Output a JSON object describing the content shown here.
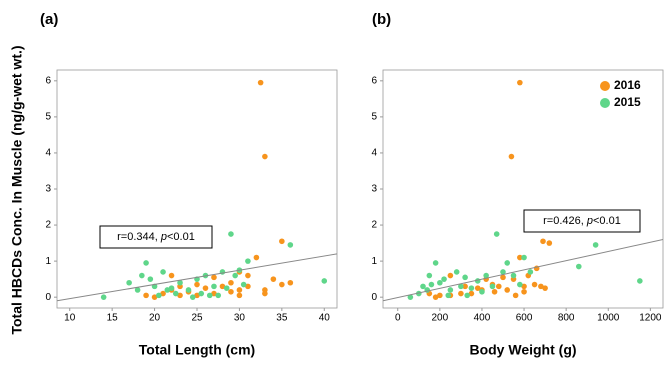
{
  "chart_data": [
    {
      "type": "scatter",
      "panel_label": "(a)",
      "x_label": "Total Length (cm)",
      "y_label": "Total HBCDs Conc. In Muscle (ng/g-wet wt.)",
      "xlim": [
        8.5,
        41.5
      ],
      "ylim": [
        -0.3,
        6.3
      ],
      "xticks": [
        10,
        15,
        20,
        25,
        30,
        35,
        40
      ],
      "yticks": [
        0,
        1,
        2,
        3,
        4,
        5,
        6
      ],
      "annotation": {
        "prefix": "r=0.344, ",
        "italic": "p",
        "suffix": "<0.01"
      },
      "fit_line": {
        "x": [
          8.5,
          41.5
        ],
        "y": [
          -0.1,
          1.2
        ],
        "color": "#888888"
      },
      "series": [
        {
          "name": "2016",
          "color": "#f7941d",
          "x": [
            32.5,
            33,
            35,
            32,
            22,
            30,
            34,
            36,
            31,
            33,
            29,
            27,
            25,
            23,
            21,
            20,
            24,
            26,
            28,
            30,
            31,
            33,
            35,
            22,
            19,
            27,
            29,
            25,
            30,
            23
          ],
          "values": [
            5.95,
            3.9,
            1.55,
            1.1,
            0.6,
            0.7,
            0.5,
            0.4,
            0.3,
            0.2,
            0.15,
            0.1,
            0.05,
            0.05,
            0.1,
            0.0,
            0.15,
            0.25,
            0.3,
            0.05,
            0.6,
            0.1,
            0.35,
            0.2,
            0.05,
            0.55,
            0.4,
            0.35,
            0.2,
            0.3
          ]
        },
        {
          "name": "2015",
          "color": "#5fd68a",
          "x": [
            14,
            17,
            18,
            19,
            19.5,
            20,
            21,
            22,
            22.5,
            23,
            24,
            25,
            25.5,
            26,
            27,
            27.5,
            28,
            28.5,
            29,
            29.5,
            30,
            30.5,
            31,
            26.5,
            24.5,
            20.5,
            36,
            40,
            18.5,
            21.5
          ],
          "values": [
            0.0,
            0.4,
            0.2,
            0.95,
            0.5,
            0.3,
            0.7,
            0.25,
            0.1,
            0.4,
            0.2,
            0.5,
            0.1,
            0.6,
            0.3,
            0.05,
            0.7,
            0.25,
            1.75,
            0.6,
            0.75,
            0.35,
            1.0,
            0.05,
            0.0,
            0.05,
            1.45,
            0.45,
            0.6,
            0.2
          ]
        }
      ]
    },
    {
      "type": "scatter",
      "panel_label": "(b)",
      "x_label": "Body Weight (g)",
      "xlim": [
        -70,
        1260
      ],
      "ylim": [
        -0.3,
        6.3
      ],
      "xticks": [
        0,
        200,
        400,
        600,
        800,
        1000,
        1200
      ],
      "yticks": [
        0,
        1,
        2,
        3,
        4,
        5,
        6
      ],
      "annotation": {
        "prefix": "r=0.426, ",
        "italic": "p",
        "suffix": "<0.01"
      },
      "fit_line": {
        "x": [
          -70,
          1260
        ],
        "y": [
          -0.1,
          1.6
        ],
        "color": "#888888"
      },
      "legend": "upper right",
      "series": [
        {
          "name": "2016",
          "color": "#f7941d",
          "x": [
            580,
            540,
            690,
            720,
            580,
            250,
            500,
            620,
            660,
            550,
            450,
            400,
            350,
            300,
            200,
            150,
            250,
            480,
            520,
            600,
            650,
            700,
            560,
            420,
            380,
            320,
            180,
            680,
            460,
            600
          ],
          "values": [
            5.95,
            3.9,
            1.55,
            1.5,
            1.1,
            0.6,
            0.55,
            0.6,
            0.8,
            0.5,
            0.35,
            0.2,
            0.1,
            0.1,
            0.05,
            0.1,
            0.05,
            0.3,
            0.2,
            0.3,
            0.35,
            0.25,
            0.05,
            0.5,
            0.25,
            0.3,
            0.0,
            0.3,
            0.15,
            0.15
          ]
        },
        {
          "name": "2015",
          "color": "#5fd68a",
          "x": [
            60,
            120,
            150,
            180,
            200,
            220,
            250,
            280,
            300,
            320,
            350,
            400,
            420,
            470,
            500,
            520,
            550,
            580,
            600,
            630,
            860,
            940,
            1150,
            100,
            140,
            240,
            330,
            380,
            450,
            160
          ],
          "values": [
            0.0,
            0.3,
            0.6,
            0.95,
            0.4,
            0.5,
            0.2,
            0.7,
            0.3,
            0.55,
            0.25,
            0.15,
            0.6,
            1.75,
            0.7,
            0.95,
            0.6,
            0.35,
            1.1,
            0.7,
            0.85,
            1.45,
            0.45,
            0.1,
            0.2,
            0.05,
            0.05,
            0.45,
            0.3,
            0.35
          ]
        }
      ]
    }
  ]
}
